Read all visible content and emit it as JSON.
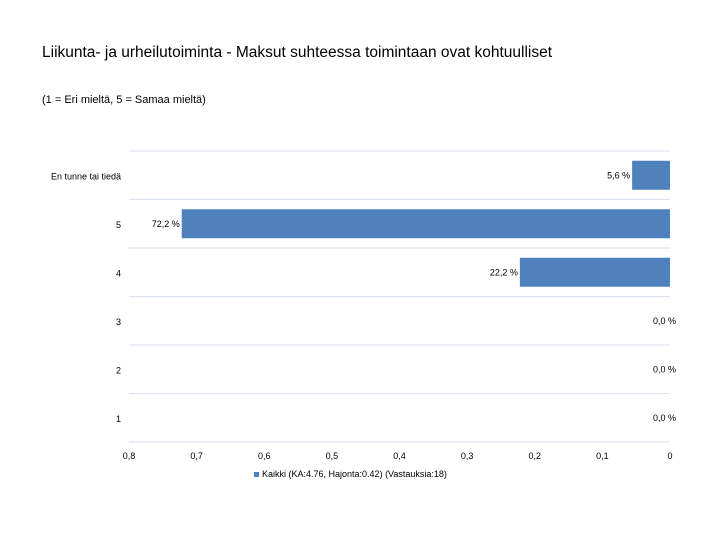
{
  "header": {
    "title": "Liikunta- ja urheilutoiminta - Maksut suhteessa toimintaan ovat kohtuulliset",
    "subtitle": "(1 = Eri mieltä, 5 = Samaa mieltä)"
  },
  "legend": {
    "label": "Kaikki (KA:4.76, Hajonta:0.42) (Vastauksia:18)"
  },
  "chart_data": {
    "type": "bar",
    "orientation": "horizontal",
    "categories": [
      "En tunne tai tiedä",
      "5",
      "4",
      "3",
      "2",
      "1"
    ],
    "series": [
      {
        "name": "Kaikki (KA:4.76, Hajonta:0.42) (Vastauksia:18)",
        "values": [
          0.056,
          0.722,
          0.222,
          0.0,
          0.0,
          0.0
        ],
        "data_labels": [
          "5,6 %",
          "72,2 %",
          "22,2 %",
          "0,0 %",
          "0,0 %",
          "0,0 %"
        ],
        "color": "#4f81bd"
      }
    ],
    "xlim": [
      0.8,
      0
    ],
    "x_reversed": true,
    "x_ticks": [
      0.8,
      0.7,
      0.6,
      0.5,
      0.4,
      0.3,
      0.2,
      0.1,
      0
    ],
    "x_tick_labels": [
      "0,8",
      "0,7",
      "0,6",
      "0,5",
      "0,4",
      "0,3",
      "0,2",
      "0,1",
      "0"
    ],
    "grid": true,
    "legend_position": "bottom",
    "gridline_color": "#d9e2ec"
  }
}
